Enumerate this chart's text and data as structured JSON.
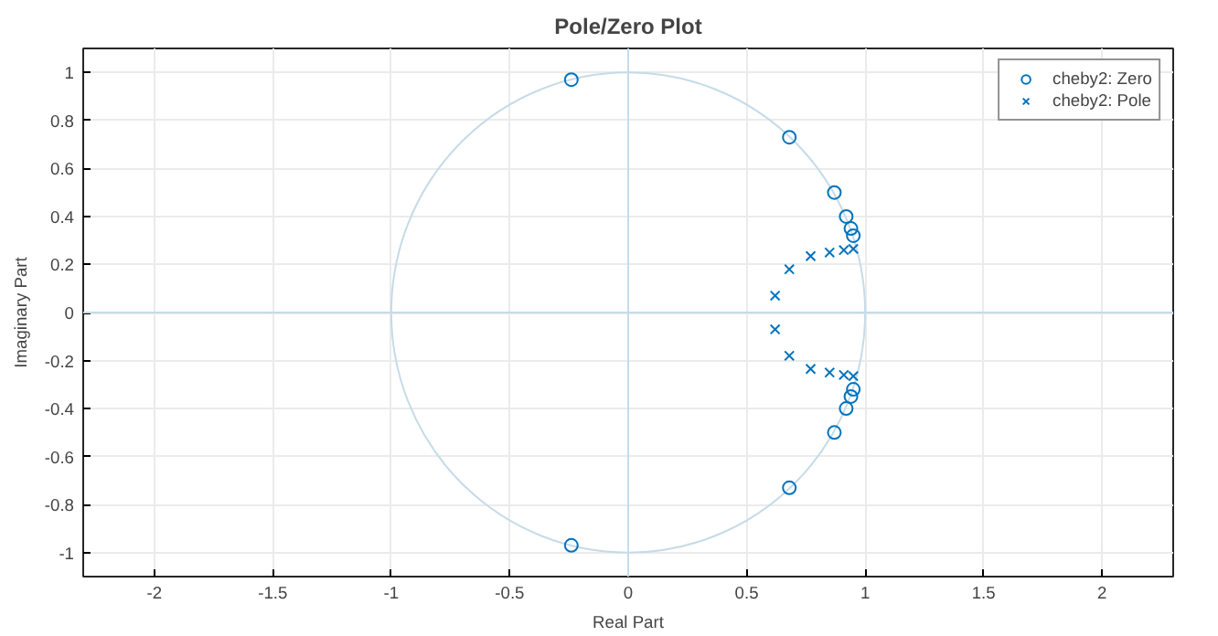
{
  "chart_data": {
    "type": "scatter",
    "title": "Pole/Zero Plot",
    "xlabel": "Real Part",
    "ylabel": "Imaginary Part",
    "xlim": [
      -2.3,
      2.3
    ],
    "ylim": [
      -1.1,
      1.1
    ],
    "xticks": [
      -2,
      -1.5,
      -1,
      -0.5,
      0,
      0.5,
      1,
      1.5,
      2
    ],
    "yticks": [
      -1,
      -0.8,
      -0.6,
      -0.4,
      -0.2,
      0,
      0.2,
      0.4,
      0.6,
      0.8,
      1
    ],
    "grid": true,
    "legend": "top right",
    "series": [
      {
        "name": "cheby2: Zero",
        "color": "#0072bd",
        "marker": "circle",
        "x": [
          -0.24,
          0.68,
          0.87,
          0.92,
          0.94,
          0.95,
          -0.24,
          0.68,
          0.87,
          0.92,
          0.94,
          0.95
        ],
        "values": [
          0.97,
          0.73,
          0.5,
          0.4,
          0.35,
          0.32,
          -0.97,
          -0.73,
          -0.5,
          -0.4,
          -0.35,
          -0.32
        ]
      },
      {
        "name": "cheby2: Pole",
        "color": "#0072bd",
        "marker": "cross",
        "x": [
          0.62,
          0.68,
          0.77,
          0.85,
          0.91,
          0.95,
          0.62,
          0.68,
          0.77,
          0.85,
          0.91,
          0.95
        ],
        "values": [
          0.07,
          0.18,
          0.235,
          0.25,
          0.26,
          0.265,
          -0.07,
          -0.18,
          -0.235,
          -0.25,
          -0.26,
          -0.265
        ]
      }
    ]
  }
}
